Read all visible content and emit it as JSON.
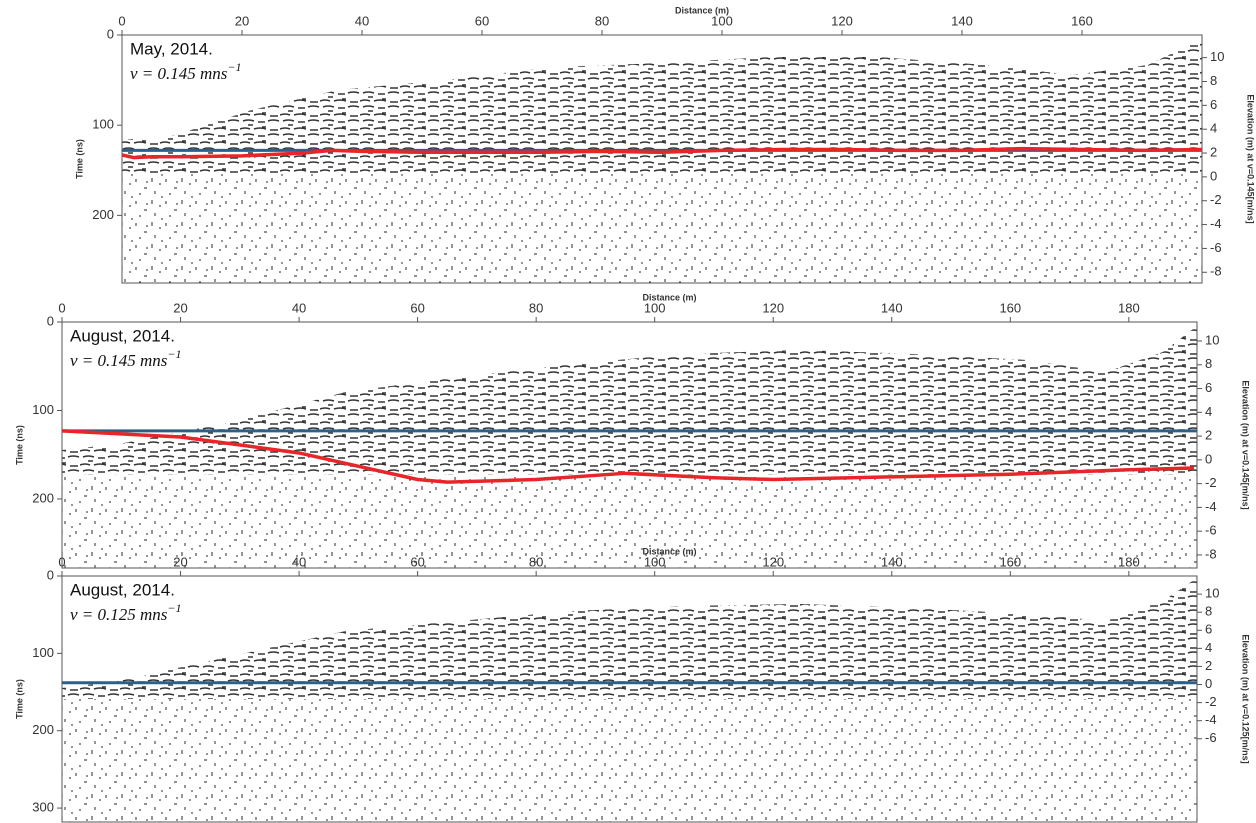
{
  "chart_data": [
    {
      "type": "line",
      "xlabel": "Distance (m)",
      "ylabel": "Time (ns)",
      "y2label": "Elevation (m) at v=0.145[m/ns]",
      "annotation": "May, 2014.",
      "velocity_text": "v = 0.145 mns",
      "velocity_exponent": "−1",
      "xlim": [
        0,
        180
      ],
      "xticks": [
        0,
        20,
        40,
        60,
        80,
        100,
        120,
        140,
        160
      ],
      "ylim": [
        0,
        275
      ],
      "yticks": [
        0,
        100,
        200
      ],
      "y2lim": [
        -8.9,
        11.9
      ],
      "y2ticks": [
        10,
        8,
        6,
        4,
        2,
        0,
        -2,
        -4,
        -6,
        -8
      ],
      "hline": {
        "y": 128,
        "color": "#2e5f8a"
      },
      "series": [
        {
          "color": "#e8262a",
          "x": [
            0,
            2,
            5,
            10,
            20,
            30,
            35,
            40,
            50,
            60,
            70,
            80,
            90,
            100,
            110,
            120,
            130,
            140,
            150,
            160,
            170,
            180
          ],
          "values": [
            133,
            136,
            135,
            135,
            134,
            131,
            128,
            129,
            130,
            130,
            130,
            129,
            130,
            128,
            127,
            127,
            128,
            128,
            126,
            127,
            128,
            127
          ]
        }
      ]
    },
    {
      "type": "line",
      "xlabel": "Distance (m)",
      "ylabel": "Time (ns)",
      "y2label": "Elevation (m) at v=0.145[m/ns]",
      "annotation": "August, 2014.",
      "velocity_text": "v = 0.145 mns",
      "velocity_exponent": "−1",
      "xlim": [
        0,
        191.5
      ],
      "xticks": [
        0,
        20,
        40,
        60,
        80,
        100,
        120,
        140,
        160,
        180
      ],
      "ylim": [
        0,
        278
      ],
      "yticks": [
        0,
        100,
        200
      ],
      "y2lim": [
        -9.1,
        11.6
      ],
      "y2ticks": [
        10,
        8,
        6,
        4,
        2,
        0,
        -2,
        -4,
        -6,
        -8
      ],
      "hline": {
        "y": 123,
        "color": "#2e5f8a"
      },
      "series": [
        {
          "color": "#e8262a",
          "x": [
            0,
            20,
            40,
            60,
            65,
            80,
            95,
            110,
            120,
            140,
            160,
            180,
            191
          ],
          "values": [
            123,
            130,
            148,
            178,
            181,
            178,
            171,
            176,
            178,
            175,
            172,
            167,
            165
          ]
        }
      ]
    },
    {
      "type": "line",
      "xlabel": "Distance (m)",
      "ylabel": "Time (ns)",
      "y2label": "Elevation (m) at v=0.125[m/ns]",
      "annotation": "August, 2014.",
      "velocity_text": "v = 0.125 mns",
      "velocity_exponent": "−1",
      "xlim": [
        0,
        191.5
      ],
      "xticks": [
        0,
        20,
        40,
        60,
        80,
        100,
        120,
        140,
        160,
        180
      ],
      "ylim": [
        0,
        318
      ],
      "yticks": [
        0,
        100,
        200,
        300
      ],
      "y2lim": [
        -15.2,
        12
      ],
      "y2ticks": [
        10,
        8,
        6,
        4,
        2,
        0,
        -2,
        -4,
        -6
      ],
      "hline": {
        "y": 138,
        "color": "#2e5f8a"
      },
      "series": []
    }
  ]
}
